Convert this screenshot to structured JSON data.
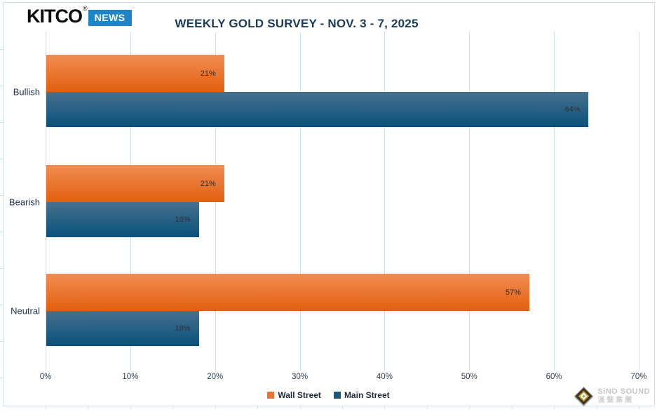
{
  "header": {
    "logo": {
      "brand": "KITCO",
      "registered_mark": "®",
      "badge": "NEWS",
      "badge_color": "#1e86c8"
    },
    "title": "WEEKLY GOLD SURVEY - NOV. 3 - 7, 2025"
  },
  "chart_data": {
    "type": "bar",
    "orientation": "horizontal",
    "title": "WEEKLY GOLD SURVEY - NOV. 3 - 7, 2025",
    "categories": [
      "Bullish",
      "Bearish",
      "Neutral"
    ],
    "series": [
      {
        "name": "Wall Street",
        "values": [
          21,
          21,
          57
        ],
        "color": "#e9732f",
        "gradient_top": "#f18d54",
        "gradient_bottom": "#e25f0e"
      },
      {
        "name": "Main Street",
        "values": [
          64,
          18,
          18
        ],
        "color": "#1d5878",
        "gradient_top": "#47708e",
        "gradient_bottom": "#09517a"
      }
    ],
    "value_labels": [
      [
        "21%",
        "64%"
      ],
      [
        "21%",
        "18%"
      ],
      [
        "57%",
        "18%"
      ]
    ],
    "x_ticks": [
      "0%",
      "10%",
      "20%",
      "30%",
      "40%",
      "50%",
      "60%",
      "70%"
    ],
    "xlim": [
      0,
      70
    ],
    "xlabel": "",
    "ylabel": "",
    "grid": true,
    "gridline_color": "#cfe0ec",
    "legend_position": "bottom"
  },
  "legend": {
    "items": [
      {
        "label": "Wall Street",
        "color": "#e9732f"
      },
      {
        "label": "Main Street",
        "color": "#1d5878"
      }
    ]
  },
  "watermark": {
    "line1": "SiNO SOUND",
    "line2": "漢聲集團"
  }
}
